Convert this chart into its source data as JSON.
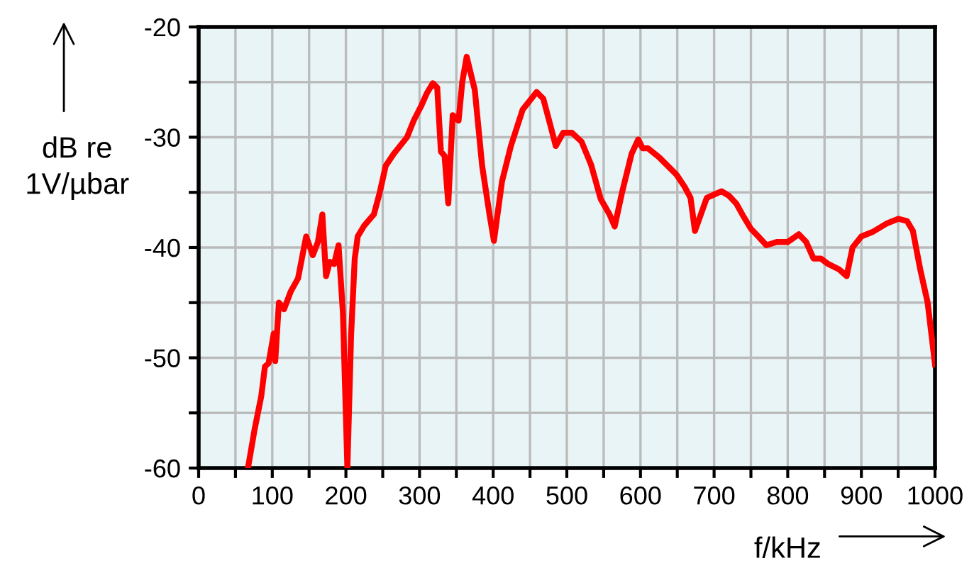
{
  "chart_data": {
    "type": "line",
    "xlabel": "f/kHz",
    "ylabel": "dB re\n1V/µbar",
    "x": [
      67,
      76,
      85,
      90,
      95,
      102,
      104,
      109,
      116,
      125,
      135,
      146,
      155,
      162,
      168,
      173,
      178,
      184,
      190,
      196,
      202,
      207,
      212,
      216,
      225,
      238,
      246,
      254,
      265,
      283,
      292,
      302,
      310,
      318,
      324,
      329,
      334,
      339,
      345,
      353,
      358,
      364,
      375,
      385,
      395,
      401,
      412,
      424,
      440,
      459,
      468,
      478,
      485,
      495,
      507,
      520,
      533,
      546,
      558,
      565,
      575,
      588,
      597,
      603,
      610,
      625,
      640,
      649,
      660,
      668,
      674,
      682,
      690,
      700,
      710,
      720,
      730,
      740,
      750,
      760,
      771,
      785,
      800,
      815,
      825,
      835,
      845,
      855,
      870,
      880,
      888,
      900,
      915,
      935,
      950,
      962,
      970,
      980,
      990,
      1000
    ],
    "series": [
      {
        "color": "#ff0000",
        "values": [
          -60,
          -56.5,
          -53.5,
          -50.8,
          -50.5,
          -47.8,
          -50.3,
          -45,
          -45.6,
          -44,
          -42.8,
          -39,
          -40.7,
          -39.5,
          -37,
          -42.6,
          -41.3,
          -41.5,
          -39.8,
          -46,
          -60,
          -48,
          -41,
          -39,
          -38,
          -37,
          -35,
          -32.6,
          -31.5,
          -30,
          -28.5,
          -27.2,
          -26,
          -25.1,
          -25.5,
          -31.3,
          -31.7,
          -36,
          -28,
          -28.5,
          -25,
          -22.7,
          -25.7,
          -32.6,
          -37,
          -39.4,
          -34,
          -30.8,
          -27.5,
          -25.9,
          -26.5,
          -29,
          -30.8,
          -29.6,
          -29.6,
          -30.4,
          -32.5,
          -35.6,
          -37,
          -38.1,
          -35,
          -31.5,
          -30.2,
          -31,
          -31,
          -31.8,
          -32.8,
          -33.4,
          -34.5,
          -35.5,
          -38.5,
          -37,
          -35.5,
          -35.2,
          -34.9,
          -35.3,
          -36,
          -37.2,
          -38.3,
          -39,
          -39.8,
          -39.5,
          -39.5,
          -38.8,
          -39.5,
          -41,
          -41,
          -41.5,
          -42,
          -42.6,
          -40,
          -39,
          -38.6,
          -37.8,
          -37.4,
          -37.6,
          -38.5,
          -42,
          -45,
          -50.6
        ]
      }
    ],
    "xlim": [
      0,
      1000
    ],
    "ylim": [
      -60,
      -20
    ],
    "xticks": [
      0,
      {
        "value": 50,
        "label": null
      },
      100,
      {
        "value": 150,
        "label": null
      },
      200,
      {
        "value": 250,
        "label": null
      },
      300,
      {
        "value": 350,
        "label": null
      },
      400,
      {
        "value": 450,
        "label": null
      },
      500,
      {
        "value": 550,
        "label": null
      },
      600,
      {
        "value": 650,
        "label": null
      },
      700,
      {
        "value": 750,
        "label": null
      },
      800,
      {
        "value": 850,
        "label": null
      },
      900,
      {
        "value": 950,
        "label": null
      },
      1000
    ],
    "yticks": [
      -60,
      {
        "value": -55,
        "label": null
      },
      -50,
      {
        "value": -45,
        "label": null
      },
      -40,
      {
        "value": -35,
        "label": null
      },
      -30,
      {
        "value": -25,
        "label": null
      },
      -20
    ],
    "grid": true,
    "line_style": "solid",
    "marker": "none"
  }
}
